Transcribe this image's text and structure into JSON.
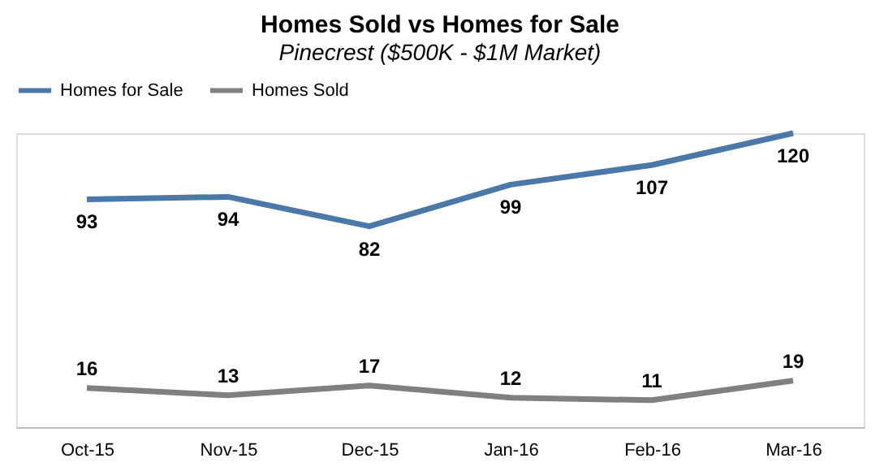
{
  "chart_data": {
    "type": "line",
    "title": "Homes Sold vs Homes for Sale",
    "subtitle": "Pinecrest ($500K - $1M Market)",
    "categories": [
      "Oct-15",
      "Nov-15",
      "Dec-15",
      "Jan-16",
      "Feb-16",
      "Mar-16"
    ],
    "series": [
      {
        "name": "Homes for Sale",
        "color": "#4a78a8",
        "values": [
          93,
          94,
          82,
          99,
          107,
          120
        ]
      },
      {
        "name": "Homes Sold",
        "color": "#808080",
        "values": [
          16,
          13,
          17,
          12,
          11,
          19
        ]
      }
    ],
    "data_labels": true,
    "grid": false,
    "legend": "top",
    "marker": "none",
    "line_style": "solid"
  }
}
